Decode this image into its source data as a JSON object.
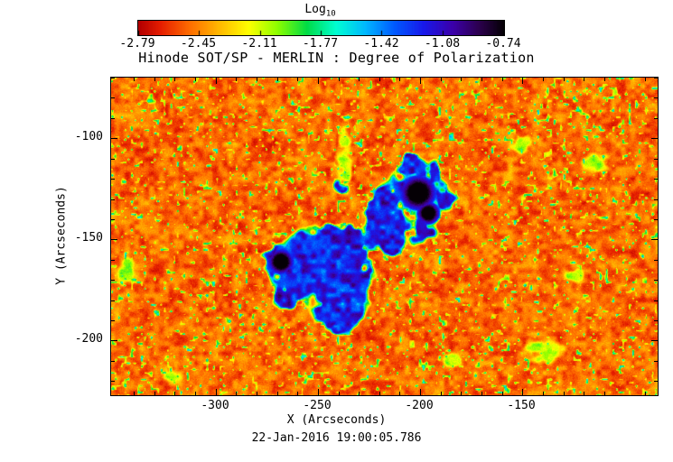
{
  "figure": {
    "title": "Hinode SOT/SP - MERLIN : Degree of Polarization",
    "timestamp": "22-Jan-2016 19:00:05.786",
    "background": "#ffffff"
  },
  "colorbar": {
    "label_main": "Log",
    "label_sub": "10",
    "tick_labels": [
      "-2.79",
      "-2.45",
      "-2.11",
      "-1.77",
      "-1.42",
      "-1.08",
      "-0.74"
    ]
  },
  "axes": {
    "x": {
      "label": "X (Arcseconds)",
      "major_ticks": [
        -300,
        -250,
        -200,
        -150
      ],
      "minor_step": 10,
      "range": [
        -351,
        -84
      ]
    },
    "y": {
      "label": "Y (Arcseconds)",
      "major_ticks": [
        -100,
        -150,
        -200
      ],
      "minor_step": 10,
      "range": [
        -227,
        -70
      ]
    }
  },
  "chart_data": {
    "type": "heatmap",
    "title": "Hinode SOT/SP - MERLIN : Degree of Polarization",
    "xlabel": "X (Arcseconds)",
    "ylabel": "Y (Arcseconds)",
    "xlim": [
      -351,
      -84
    ],
    "ylim": [
      -227,
      -70
    ],
    "timestamp": "22-Jan-2016 19:00:05.786",
    "colorbar": {
      "label": "Log10",
      "range": [
        -2.79,
        -0.74
      ],
      "ticks": [
        -2.79,
        -2.45,
        -2.11,
        -1.77,
        -1.42,
        -1.08,
        -0.74
      ]
    },
    "colormap_stops": [
      [
        0.0,
        180,
        0,
        0
      ],
      [
        0.06,
        230,
        30,
        0
      ],
      [
        0.14,
        255,
        110,
        0
      ],
      [
        0.22,
        255,
        185,
        0
      ],
      [
        0.3,
        255,
        255,
        0
      ],
      [
        0.38,
        140,
        255,
        0
      ],
      [
        0.46,
        0,
        220,
        70
      ],
      [
        0.54,
        0,
        255,
        210
      ],
      [
        0.62,
        0,
        185,
        255
      ],
      [
        0.7,
        0,
        90,
        255
      ],
      [
        0.78,
        25,
        25,
        235
      ],
      [
        0.86,
        60,
        0,
        170
      ],
      [
        0.93,
        45,
        0,
        80
      ],
      [
        1.0,
        5,
        0,
        5
      ]
    ],
    "description": "Log10 degree-of-polarization map of a solar active region. Quiet-Sun background near -2.4 to -2.8 (red/orange mottling with yellow-green flecks), magnetic network/plage around -1.4 to -1.0 (cyan/blue patches), and sunspot-pore cores reaching about -0.74 (violet/black).",
    "features": {
      "sunspot_cores": [
        {
          "x": -201,
          "y": -127,
          "r": 7
        },
        {
          "x": -196,
          "y": -137,
          "r": 4.5
        },
        {
          "x": -268,
          "y": -161,
          "r": 5
        }
      ],
      "network_patches": [
        {
          "x": -210,
          "y": -125,
          "r": 9
        },
        {
          "x": -194,
          "y": -117,
          "r": 7
        },
        {
          "x": -188,
          "y": -130,
          "r": 7
        },
        {
          "x": -215,
          "y": -140,
          "r": 9
        },
        {
          "x": -198,
          "y": -145,
          "r": 8
        },
        {
          "x": -212,
          "y": -152,
          "r": 7
        },
        {
          "x": -224,
          "y": -148,
          "r": 8
        },
        {
          "x": -236,
          "y": -152,
          "r": 9
        },
        {
          "x": -247,
          "y": -150,
          "r": 9
        },
        {
          "x": -258,
          "y": -155,
          "r": 9
        },
        {
          "x": -270,
          "y": -160,
          "r": 9
        },
        {
          "x": -262,
          "y": -171,
          "r": 9
        },
        {
          "x": -252,
          "y": -166,
          "r": 9
        },
        {
          "x": -240,
          "y": -162,
          "r": 10
        },
        {
          "x": -230,
          "y": -170,
          "r": 9
        },
        {
          "x": -244,
          "y": -174,
          "r": 9
        },
        {
          "x": -233,
          "y": -183,
          "r": 8
        },
        {
          "x": -247,
          "y": -186,
          "r": 8
        },
        {
          "x": -238,
          "y": -191,
          "r": 7
        },
        {
          "x": -266,
          "y": -181,
          "r": 6
        },
        {
          "x": -220,
          "y": -133,
          "r": 7
        },
        {
          "x": -239,
          "y": -124,
          "r": 5
        },
        {
          "x": -205,
          "y": -112,
          "r": 6
        }
      ],
      "plage_patches": [
        {
          "x": -237,
          "y": -110,
          "rx": 5,
          "ry": 22
        },
        {
          "x": -140,
          "y": -205,
          "rx": 13,
          "ry": 9
        },
        {
          "x": -114,
          "y": -112,
          "rx": 9,
          "ry": 7
        },
        {
          "x": -343,
          "y": -166,
          "rx": 6,
          "ry": 9
        },
        {
          "x": -124,
          "y": -168,
          "rx": 7,
          "ry": 5
        },
        {
          "x": -150,
          "y": -103,
          "rx": 8,
          "ry": 6
        },
        {
          "x": -320,
          "y": -218,
          "rx": 8,
          "ry": 6
        },
        {
          "x": -184,
          "y": -210,
          "rx": 7,
          "ry": 5
        }
      ]
    },
    "render": {
      "seed": 7,
      "background": {
        "base": 0.03,
        "n1_amp": 0.13,
        "n2_amp": 0.08,
        "fleck_threshold": 0.75,
        "fleck_gain": 1.9,
        "fleck_max": 0.45
      },
      "network_level": 0.6,
      "plage_level": 0.3,
      "core_level": 0.62,
      "jitter": 0.05
    }
  }
}
